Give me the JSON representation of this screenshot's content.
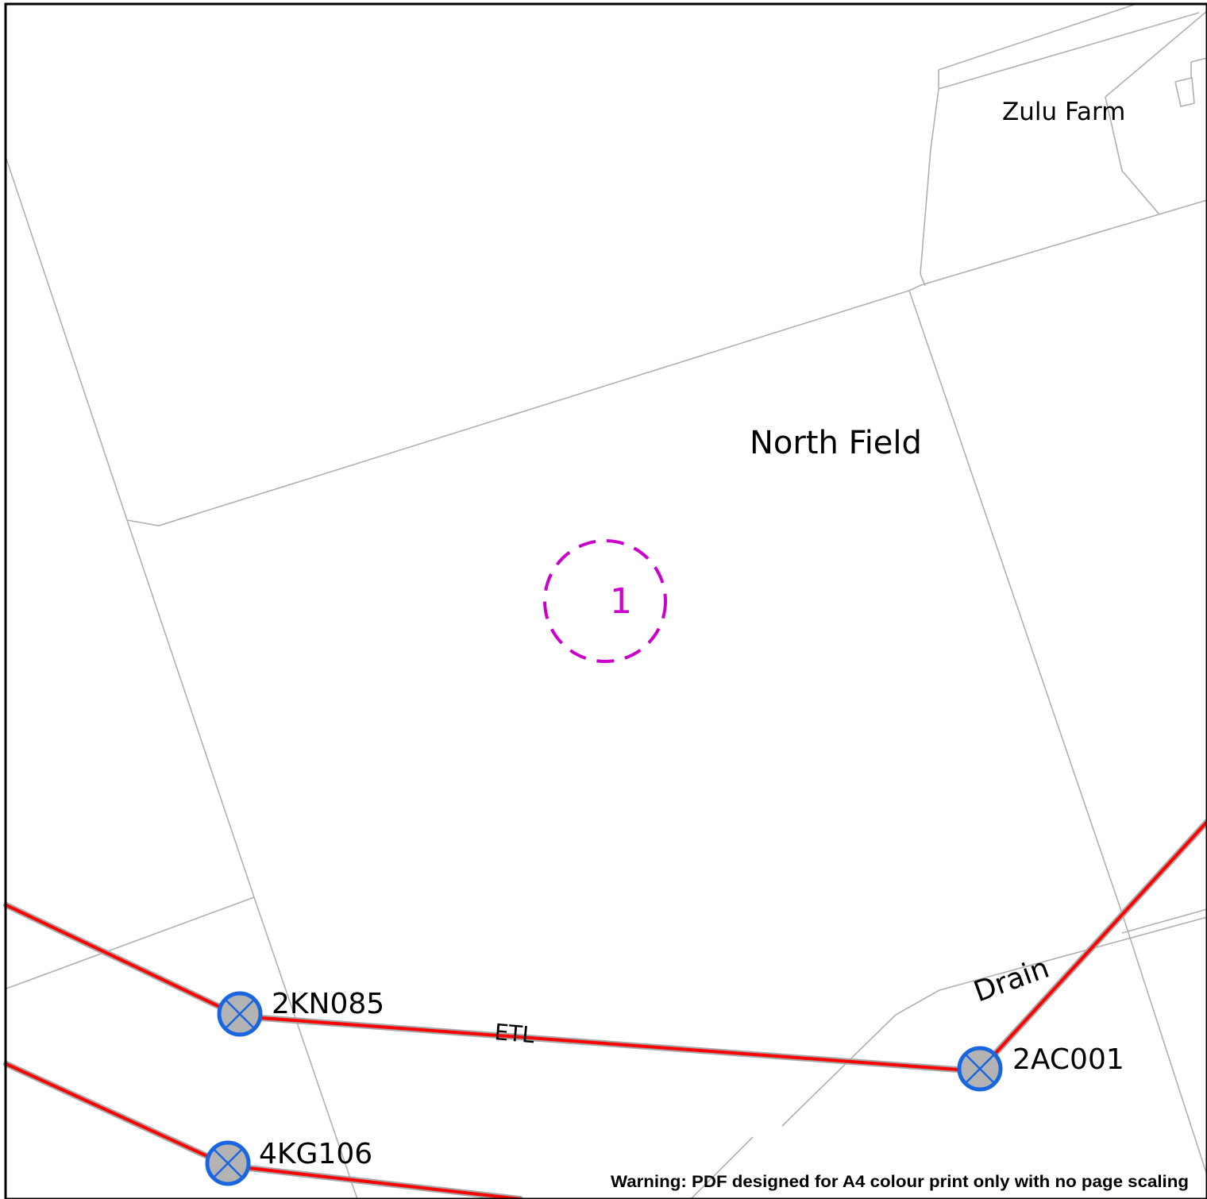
{
  "places": {
    "zulu_farm": "Zulu Farm",
    "north_field": "North Field",
    "drain": "Drain"
  },
  "site_marker": {
    "label": "1",
    "color": "#cc00cc"
  },
  "power_line": {
    "label": "ETL",
    "color": "#ff0000"
  },
  "poles": {
    "p1": "2KN085",
    "p2": "2AC001",
    "p3": "4KG106"
  },
  "pole_style": {
    "ring_color": "#1a66e0",
    "fill_color": "#b3b3b3"
  },
  "warning": "Warning: PDF designed for A4 colour print only with no page scaling"
}
